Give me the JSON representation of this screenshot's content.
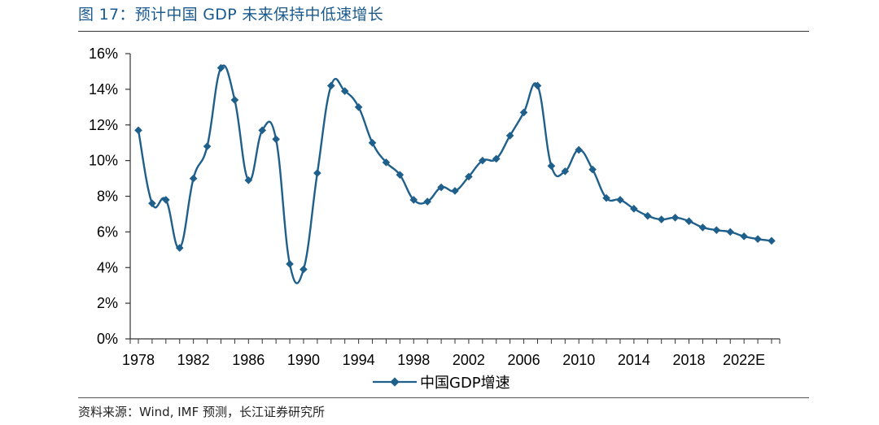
{
  "figure": {
    "title": "图 17：预计中国 GDP 未来保持中低速增长",
    "source": "资料来源：Wind, IMF 预测，长江证券研究所"
  },
  "colors": {
    "series": "#1f5f8b",
    "axis": "#333333",
    "title": "#1a5a8e"
  },
  "chart_data": {
    "type": "line",
    "title": "",
    "xlabel": "",
    "ylabel": "",
    "ylim": [
      0,
      16
    ],
    "yticks": [
      "0%",
      "2%",
      "4%",
      "6%",
      "8%",
      "10%",
      "12%",
      "14%",
      "16%"
    ],
    "xticks": [
      "1978",
      "1982",
      "1986",
      "1990",
      "1994",
      "1998",
      "2002",
      "2006",
      "2010",
      "2014",
      "2018",
      "2022E"
    ],
    "grid": false,
    "legend_position": "bottom",
    "x": [
      1978,
      1979,
      1980,
      1981,
      1982,
      1983,
      1984,
      1985,
      1986,
      1987,
      1988,
      1989,
      1990,
      1991,
      1992,
      1993,
      1994,
      1995,
      1996,
      1997,
      1998,
      1999,
      2000,
      2001,
      2002,
      2003,
      2004,
      2005,
      2006,
      2007,
      2008,
      2009,
      2010,
      2011,
      2012,
      2013,
      2014,
      2015,
      2016,
      2017,
      2018,
      2019,
      2020,
      2021,
      2022,
      2023,
      2024
    ],
    "series": [
      {
        "name": "中国GDP增速",
        "values": [
          11.7,
          7.6,
          7.8,
          5.1,
          9.0,
          10.8,
          15.2,
          13.4,
          8.9,
          11.7,
          11.2,
          4.2,
          3.9,
          9.3,
          14.2,
          13.9,
          13.0,
          11.0,
          9.9,
          9.2,
          7.8,
          7.7,
          8.5,
          8.3,
          9.1,
          10.0,
          10.1,
          11.4,
          12.7,
          14.2,
          9.7,
          9.4,
          10.6,
          9.5,
          7.9,
          7.8,
          7.3,
          6.9,
          6.7,
          6.8,
          6.6,
          6.25,
          6.1,
          6.0,
          5.75,
          5.6,
          5.5
        ]
      }
    ]
  }
}
